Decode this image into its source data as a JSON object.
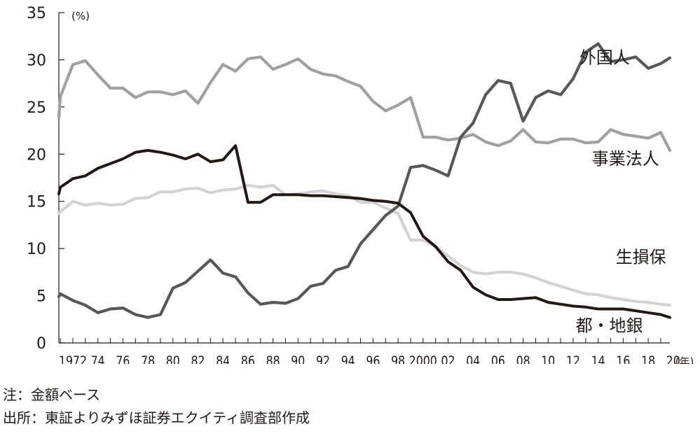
{
  "chart_data": {
    "type": "line",
    "title": "",
    "xlabel": "",
    "ylabel": "",
    "y_unit": "(%)",
    "x_unit": "(年)",
    "ylim": [
      0,
      35
    ],
    "yticks": [
      "0",
      "5",
      "10",
      "15",
      "20",
      "25",
      "30",
      "35"
    ],
    "xlim": [
      1971,
      2021
    ],
    "xticks": [
      {
        "year": 1972,
        "label": "1972"
      },
      {
        "year": 1974,
        "label": "74"
      },
      {
        "year": 1976,
        "label": "76"
      },
      {
        "year": 1978,
        "label": "78"
      },
      {
        "year": 1980,
        "label": "80"
      },
      {
        "year": 1982,
        "label": "82"
      },
      {
        "year": 1984,
        "label": "84"
      },
      {
        "year": 1986,
        "label": "86"
      },
      {
        "year": 1988,
        "label": "88"
      },
      {
        "year": 1990,
        "label": "90"
      },
      {
        "year": 1992,
        "label": "92"
      },
      {
        "year": 1994,
        "label": "94"
      },
      {
        "year": 1996,
        "label": "96"
      },
      {
        "year": 1998,
        "label": "98"
      },
      {
        "year": 2000,
        "label": "2000"
      },
      {
        "year": 2002,
        "label": "02"
      },
      {
        "year": 2004,
        "label": "04"
      },
      {
        "year": 2006,
        "label": "06"
      },
      {
        "year": 2008,
        "label": "08"
      },
      {
        "year": 2010,
        "label": "10"
      },
      {
        "year": 2012,
        "label": "12"
      },
      {
        "year": 2014,
        "label": "14"
      },
      {
        "year": 2016,
        "label": "16"
      },
      {
        "year": 2018,
        "label": "18"
      },
      {
        "year": 2020,
        "label": "20"
      }
    ],
    "x": [
      1970,
      1971,
      1972,
      1973,
      1974,
      1975,
      1976,
      1977,
      1978,
      1979,
      1980,
      1981,
      1982,
      1983,
      1984,
      1985,
      1986,
      1987,
      1988,
      1989,
      1990,
      1991,
      1992,
      1993,
      1994,
      1995,
      1996,
      1997,
      1998,
      1999,
      2000,
      2001,
      2002,
      2003,
      2004,
      2005,
      2006,
      2007,
      2008,
      2009,
      2010,
      2011,
      2012,
      2013,
      2014,
      2015,
      2016,
      2017,
      2018,
      2019,
      2020,
      2021
    ],
    "series": [
      {
        "name": "外国人",
        "color": "#595757",
        "label_anchor": {
          "year": 2012.5,
          "value": 30.2
        },
        "values": [
          4.9,
          5.2,
          4.5,
          4.0,
          3.2,
          3.6,
          3.7,
          3.0,
          2.7,
          3.0,
          5.8,
          6.4,
          7.6,
          8.8,
          7.4,
          7.0,
          5.3,
          4.1,
          4.3,
          4.2,
          4.7,
          6.0,
          6.3,
          7.7,
          8.1,
          10.5,
          12.0,
          13.5,
          14.5,
          18.6,
          18.8,
          18.3,
          17.7,
          21.8,
          23.3,
          26.3,
          27.8,
          27.5,
          23.5,
          26.0,
          26.7,
          26.3,
          28.0,
          30.8,
          31.7,
          29.8,
          30.0,
          30.3,
          29.1,
          29.6,
          30.2,
          30.2
        ]
      },
      {
        "name": "事業法人",
        "color": "#9fa0a0",
        "label_anchor": {
          "year": 2013.5,
          "value": 19.5
        },
        "values": [
          23.9,
          26.1,
          29.5,
          29.9,
          28.4,
          27.0,
          27.0,
          26.0,
          26.6,
          26.6,
          26.3,
          26.7,
          25.4,
          27.6,
          29.5,
          28.8,
          30.1,
          30.3,
          29.0,
          29.5,
          30.1,
          29.0,
          28.5,
          28.3,
          27.7,
          27.2,
          25.6,
          24.6,
          25.2,
          26.0,
          21.8,
          21.8,
          21.5,
          21.7,
          22.1,
          21.3,
          20.9,
          21.4,
          22.6,
          21.3,
          21.2,
          21.6,
          21.6,
          21.2,
          21.3,
          22.6,
          22.1,
          21.9,
          21.7,
          22.3,
          20.4,
          20.4
        ]
      },
      {
        "name": "生損保",
        "color": "#d3d3d4",
        "label_anchor": {
          "year": 2015.4,
          "value": 9.1
        },
        "values": [
          13.7,
          13.9,
          15.0,
          14.6,
          14.8,
          14.6,
          14.7,
          15.3,
          15.4,
          16.0,
          16.0,
          16.3,
          16.4,
          15.9,
          16.2,
          16.3,
          16.7,
          16.5,
          16.7,
          15.7,
          15.8,
          16.0,
          16.1,
          15.8,
          15.6,
          14.9,
          14.9,
          14.3,
          13.7,
          10.9,
          10.9,
          10.2,
          9.2,
          8.2,
          7.5,
          7.3,
          7.5,
          7.5,
          7.3,
          6.9,
          6.4,
          6.0,
          5.6,
          5.2,
          5.1,
          4.8,
          4.6,
          4.4,
          4.3,
          4.1,
          4.0,
          4.0
        ]
      },
      {
        "name": "都・地銀",
        "color": "#231815",
        "label_anchor": {
          "year": 2012.2,
          "value": 1.8
        },
        "values": [
          15.8,
          16.5,
          17.4,
          17.7,
          18.5,
          19.0,
          19.5,
          20.2,
          20.4,
          20.2,
          19.9,
          19.5,
          20.0,
          19.2,
          19.4,
          20.9,
          14.9,
          14.9,
          15.7,
          15.7,
          15.7,
          15.6,
          15.6,
          15.5,
          15.4,
          15.3,
          15.1,
          15.0,
          14.8,
          13.8,
          11.3,
          10.2,
          8.6,
          7.7,
          5.9,
          5.1,
          4.6,
          4.6,
          4.7,
          4.8,
          4.3,
          4.1,
          3.9,
          3.8,
          3.6,
          3.6,
          3.6,
          3.4,
          3.2,
          3.0,
          2.7,
          2.7
        ]
      }
    ]
  },
  "notes": {
    "line1": "注：金額ベース",
    "line2": "出所：東証よりみずほ証券エクイティ調査部作成"
  }
}
